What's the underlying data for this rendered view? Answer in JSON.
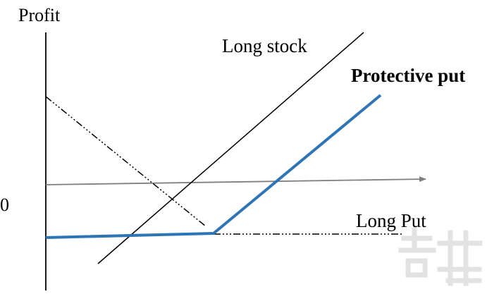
{
  "diagram": {
    "y_axis_label": "Profit",
    "zero_label": "0",
    "labels": {
      "long_stock": "Long stock",
      "protective_put": "Protective put",
      "long_put": "Long Put"
    },
    "colors": {
      "axis": "#000000",
      "horizontal_axis": "#808080",
      "long_stock": "#000000",
      "protective_put": "#2E75B6",
      "long_put": "#000000",
      "protective_put_label": "#5B9BD5",
      "watermark": "#D9D9D9"
    }
  }
}
